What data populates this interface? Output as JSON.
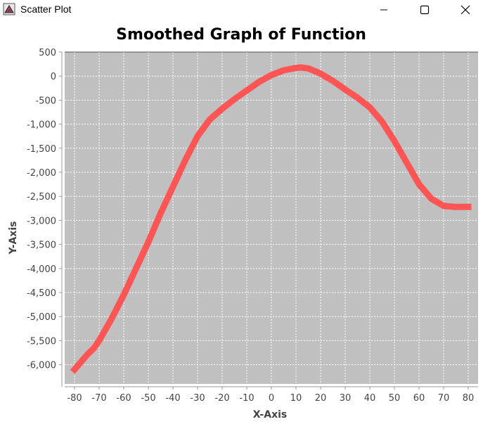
{
  "window": {
    "title": "Scatter Plot",
    "minimize_icon": "minimize-icon",
    "maximize_icon": "maximize-icon",
    "close_icon": "close-icon"
  },
  "chart_data": {
    "type": "line",
    "title": "Smoothed Graph of Function",
    "xlabel": "X-Axis",
    "ylabel": "Y-Axis",
    "xlim": [
      -84,
      84
    ],
    "ylim": [
      -6400,
      500
    ],
    "x_ticks": [
      -80,
      -70,
      -60,
      -50,
      -40,
      -30,
      -20,
      -10,
      0,
      10,
      20,
      30,
      40,
      50,
      60,
      70,
      80
    ],
    "x_tick_labels": [
      "-80",
      "-70",
      "-60",
      "-50",
      "-40",
      "-30",
      "-20",
      "-10",
      "0",
      "10",
      "20",
      "30",
      "40",
      "50",
      "60",
      "70",
      "80"
    ],
    "y_ticks": [
      500,
      0,
      -500,
      -1000,
      -1500,
      -2000,
      -2500,
      -3000,
      -3500,
      -4000,
      -4500,
      -5000,
      -5500,
      -6000
    ],
    "y_tick_labels": [
      "500",
      "0",
      "-500",
      "-1,000",
      "-1,500",
      "-2,000",
      "-2,500",
      "-3,000",
      "-3,500",
      "-4,000",
      "-4,500",
      "-5,000",
      "-5,500",
      "-6,000"
    ],
    "grid": true,
    "colors": {
      "plot_bg": "#c0c0c0",
      "series": "#ff5555",
      "grid": "#ffffff"
    },
    "series": [
      {
        "x": [
          -80,
          -78,
          -75,
          -72,
          -70,
          -65,
          -60,
          -55,
          -50,
          -45,
          -40,
          -35,
          -30,
          -25,
          -20,
          -15,
          -10,
          -5,
          0,
          5,
          10,
          12,
          15,
          20,
          25,
          30,
          35,
          40,
          45,
          50,
          55,
          60,
          65,
          70,
          75,
          80
        ],
        "y": [
          -6100,
          -5980,
          -5800,
          -5650,
          -5500,
          -5050,
          -4550,
          -4000,
          -3450,
          -2850,
          -2300,
          -1750,
          -1250,
          -900,
          -680,
          -480,
          -300,
          -120,
          20,
          120,
          170,
          180,
          160,
          50,
          -100,
          -280,
          -450,
          -650,
          -950,
          -1350,
          -1800,
          -2250,
          -2550,
          -2700,
          -2720,
          -2720
        ]
      }
    ]
  }
}
